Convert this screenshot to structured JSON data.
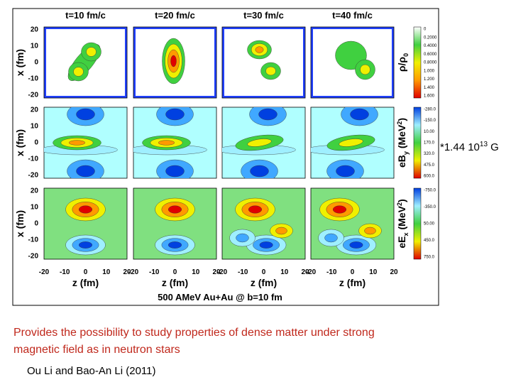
{
  "figure": {
    "panel_titles": [
      "t=10 fm/c",
      "t=20 fm/c",
      "t=30 fm/c",
      "t=40 fm/c"
    ],
    "y_ticks": [
      "20",
      "10",
      "0",
      "-10",
      "-20"
    ],
    "x_ticks": [
      "-20",
      "-10",
      "0",
      "10",
      "20"
    ],
    "y_label": "x (fm)",
    "x_label": "z (fm)",
    "caption": "500 AMeV Au+Au @ b=10 fm",
    "colorbars": [
      {
        "label_main": "ρ/ρ",
        "label_sub": "0",
        "ticks": [
          "0",
          "0.2000",
          "0.4000",
          "0.6000",
          "0.8000",
          "1.000",
          "1.200",
          "1.400",
          "1.600"
        ]
      },
      {
        "label_main": "eB",
        "label_sub": "y",
        "label_unit": "(MeV",
        "label_sup": "2",
        "label_end": ")",
        "ticks": [
          "-280.0",
          "-150.0",
          "10.00",
          "170.0",
          "320.0",
          "475.0",
          "600.0"
        ]
      },
      {
        "label_main": "eE",
        "label_sub": "x",
        "label_unit": "(MeV",
        "label_sup": "2",
        "label_end": ")",
        "ticks": [
          "-750.0",
          "-350.0",
          "50.00",
          "450.0",
          "750.0"
        ]
      }
    ]
  },
  "side_note": {
    "pre": "*1.44 10",
    "sup": "13",
    "post": " G"
  },
  "body": {
    "line1": "Provides the possibility to study properties of dense matter under strong",
    "line2": "magnetic field as in neutron stars"
  },
  "citation": "Ou Li and Bao-An Li (2011)"
}
